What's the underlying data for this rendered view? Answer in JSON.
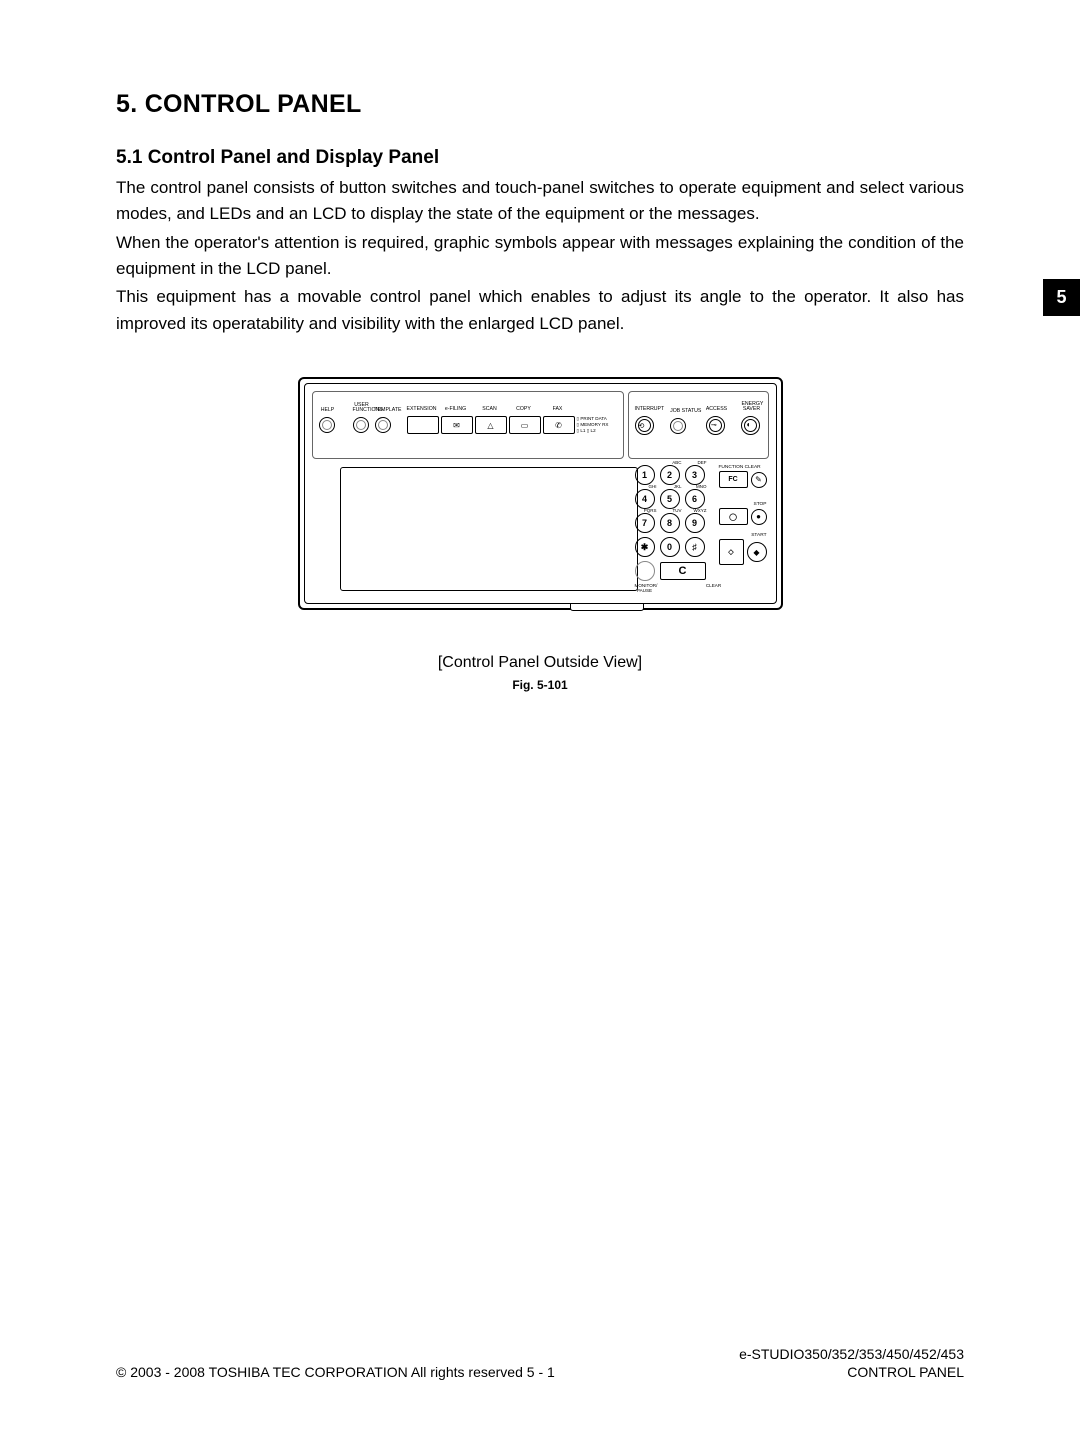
{
  "chapterTab": "5",
  "heading": "5.  CONTROL PANEL",
  "subheading": "5.1   Control Panel and Display Panel",
  "paragraph1a": "The control panel consists of button switches and touch-panel switches to operate equipment and select various modes, and LEDs and an LCD to display the state of the equipment or the messages.",
  "paragraph1b": "When the operator's attention is required, graphic symbols appear with messages explaining the condition of the equipment in the LCD panel.",
  "paragraph2": "This equipment has a movable control panel which enables to adjust its angle to the operator. It also has improved its operatability and visibility with the enlarged LCD panel.",
  "figCaption": "[Control Panel Outside View]",
  "figLabel": "Fig. 5-101",
  "footer": {
    "left": "© 2003 - 2008 TOSHIBA TEC CORPORATION All rights reserved     5 - 1",
    "right1": "e-STUDIO350/352/353/450/452/453",
    "right2": "CONTROL PANEL"
  },
  "panel": {
    "topLeft": {
      "help": "HELP",
      "userFunctions": "USER\nFUNCTIONS",
      "template": "TEMPLATE",
      "extension": "EXTENSION",
      "efiling": "e-FILING",
      "scan": "SCAN",
      "copy": "COPY",
      "fax": "FAX",
      "status": {
        "printData": "PRINT DATA",
        "memoryRx": "MEMORY RX",
        "l1": "L1",
        "l2": "L2"
      }
    },
    "topRight": {
      "interrupt": "INTERRUPT",
      "jobStatus": "JOB STATUS",
      "access": "ACCESS",
      "energySaver": "ENERGY\nSAVER"
    },
    "keypad": {
      "keys": [
        {
          "t": "1",
          "s": ""
        },
        {
          "t": "2",
          "s": "ABC"
        },
        {
          "t": "3",
          "s": "DEF"
        },
        {
          "t": "4",
          "s": "GHI"
        },
        {
          "t": "5",
          "s": "JKL"
        },
        {
          "t": "6",
          "s": "MNO"
        },
        {
          "t": "7",
          "s": "PQRS"
        },
        {
          "t": "8",
          "s": "TUV"
        },
        {
          "t": "9",
          "s": "WXYZ"
        },
        {
          "t": "✱",
          "s": ""
        },
        {
          "t": "0",
          "s": ""
        },
        {
          "t": "♯",
          "s": ""
        }
      ],
      "clearBig": "C",
      "monitorPause": "MONITOR/\nPAUSE",
      "clearLabel": "CLEAR"
    },
    "side": {
      "functionClear": "FUNCTION CLEAR",
      "fc": "FC",
      "stop": "STOP",
      "start": "START"
    }
  }
}
